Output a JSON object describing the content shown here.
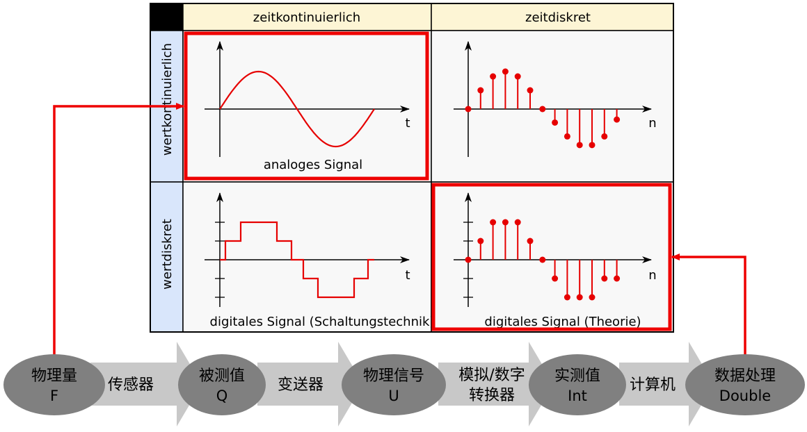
{
  "table": {
    "col_headers": [
      "zeitkontinuierlich",
      "zeitdiskret"
    ],
    "row_headers": [
      "wertkontinuierlich",
      "wertdiskret"
    ],
    "cells": {
      "analog": {
        "caption": "analoges Signal",
        "axis_label": "t",
        "highlighted": true
      },
      "sampled": {
        "caption": "",
        "axis_label": "n",
        "highlighted": false
      },
      "digital_circuit": {
        "caption": "digitales Signal (Schaltungstechnik)",
        "axis_label": "t",
        "highlighted": false
      },
      "digital_theory": {
        "caption": "digitales Signal (Theorie)",
        "axis_label": "n",
        "highlighted": true
      }
    }
  },
  "signals": {
    "sampled_values": [
      0,
      0.5,
      0.87,
      1.0,
      0.87,
      0.5,
      0.0,
      -0.36,
      -0.73,
      -0.96,
      -0.96,
      -0.73,
      -0.28
    ],
    "quantized_values": [
      0,
      1,
      2,
      2,
      2,
      1,
      0,
      -1,
      -2,
      -2,
      -2,
      -1,
      -1
    ],
    "step_levels": [
      0,
      1,
      2,
      1,
      0,
      -1,
      -2,
      -1,
      0
    ]
  },
  "pipeline": {
    "nodes": [
      {
        "line1": "物理量",
        "line2": "F"
      },
      {
        "line1": "被测值",
        "line2": "Q"
      },
      {
        "line1": "物理信号",
        "line2": "U"
      },
      {
        "line1": "实测值",
        "line2": "Int"
      },
      {
        "line1": "数据处理",
        "line2": "Double"
      }
    ],
    "steps": [
      {
        "line1": "传感器",
        "line2": ""
      },
      {
        "line1": "变送器",
        "line2": ""
      },
      {
        "line1": "模拟/数字",
        "line2": "转换器"
      },
      {
        "line1": "计算机",
        "line2": ""
      }
    ]
  },
  "colors": {
    "header_bg": "#fdf5d5",
    "row_header_bg": "#d9e6fb",
    "cell_bg": "#f8f8f8",
    "signal": "#e60000",
    "highlight": "#ee0000",
    "node_fill": "#808080",
    "arrow_fill": "#c8c8c8",
    "connector": "#ee0000"
  }
}
